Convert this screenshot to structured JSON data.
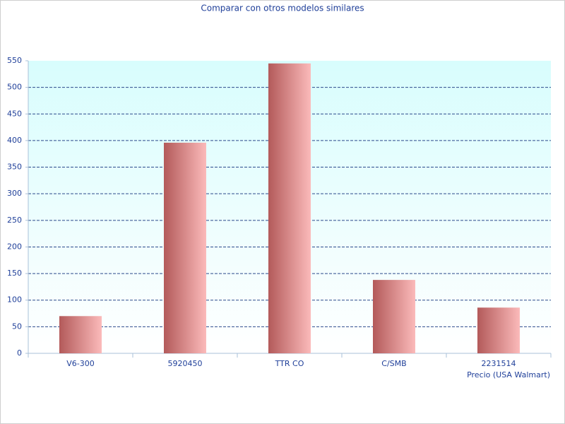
{
  "chart_data": {
    "type": "bar",
    "title": "Comparar con otros modelos similares",
    "x_label": "Precio (USA Walmart)",
    "categories": [
      "V6-300",
      "5920450",
      "TTR CO",
      "C/SMB",
      "2231514"
    ],
    "values": [
      70,
      396,
      545,
      138,
      86
    ],
    "color": "#b35a5a",
    "ylim": [
      0,
      550
    ],
    "yticks": [
      0,
      50,
      100,
      150,
      200,
      250,
      300,
      350,
      400,
      450,
      500,
      550
    ],
    "grid": true
  }
}
